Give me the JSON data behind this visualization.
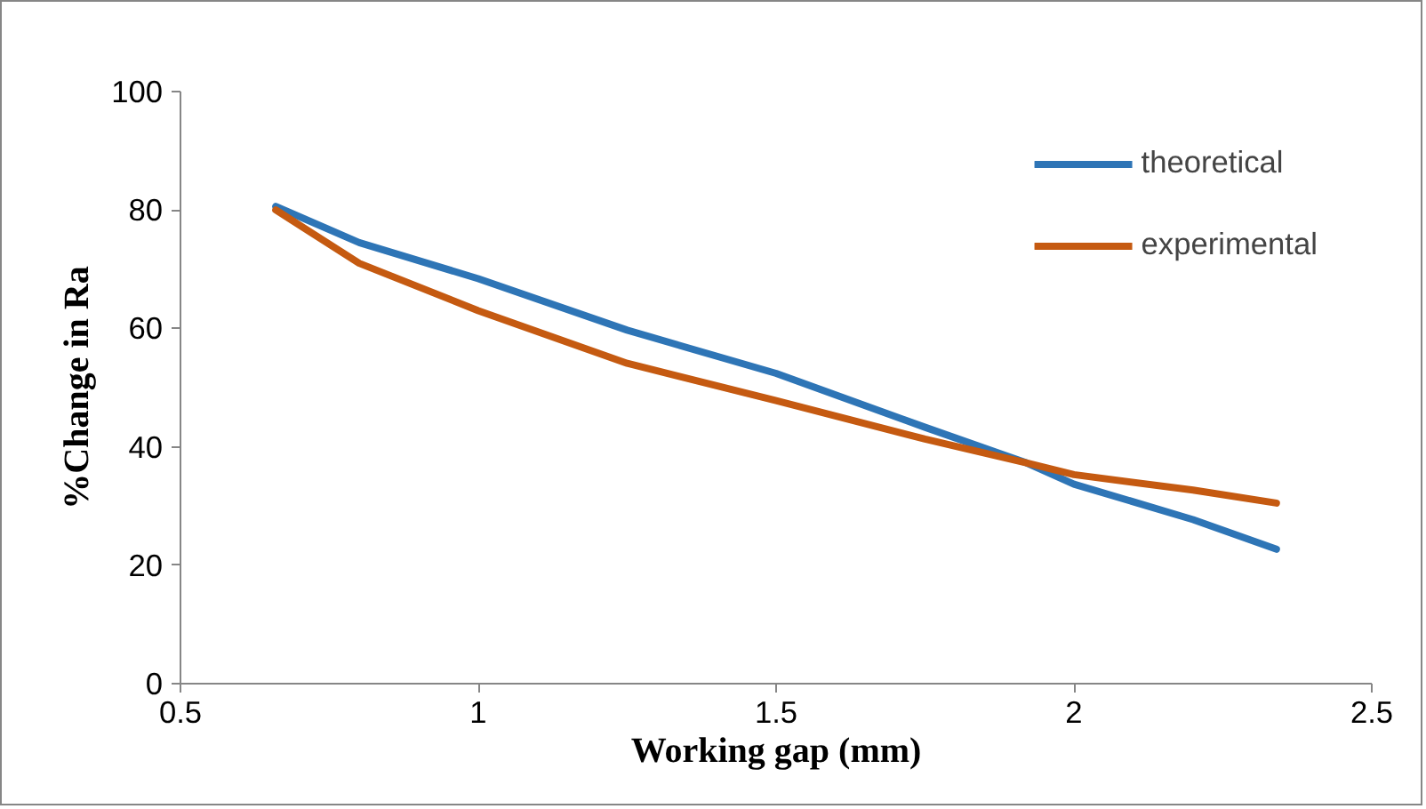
{
  "chart_data": {
    "type": "line",
    "xlabel": "Working gap (mm)",
    "ylabel": "%Change in Ra",
    "xlim": [
      0.5,
      2.5
    ],
    "xticks": [
      0.5,
      1,
      1.5,
      2,
      2.5
    ],
    "ylim": [
      0,
      100
    ],
    "yticks": [
      0,
      20,
      40,
      60,
      80,
      100
    ],
    "grid": false,
    "legend": "top right",
    "marker": "none",
    "line_style": "solid",
    "series": [
      {
        "name": "theoretical",
        "color": "#2e75b6",
        "x": [
          0.66,
          0.8,
          1,
          1.25,
          1.5,
          1.75,
          1.92,
          2,
          2.2,
          2.34
        ],
        "values": [
          80.6,
          74.5,
          68.4,
          59.7,
          52.4,
          43.3,
          37.3,
          33.7,
          27.7,
          22.7
        ]
      },
      {
        "name": "experimental",
        "color": "#c55a11",
        "x": [
          0.66,
          0.8,
          1,
          1.25,
          1.5,
          1.75,
          1.92,
          2,
          2.2,
          2.34
        ],
        "values": [
          80.0,
          71.0,
          63.0,
          54.1,
          47.8,
          41.3,
          37.3,
          35.3,
          32.7,
          30.5
        ]
      }
    ]
  }
}
